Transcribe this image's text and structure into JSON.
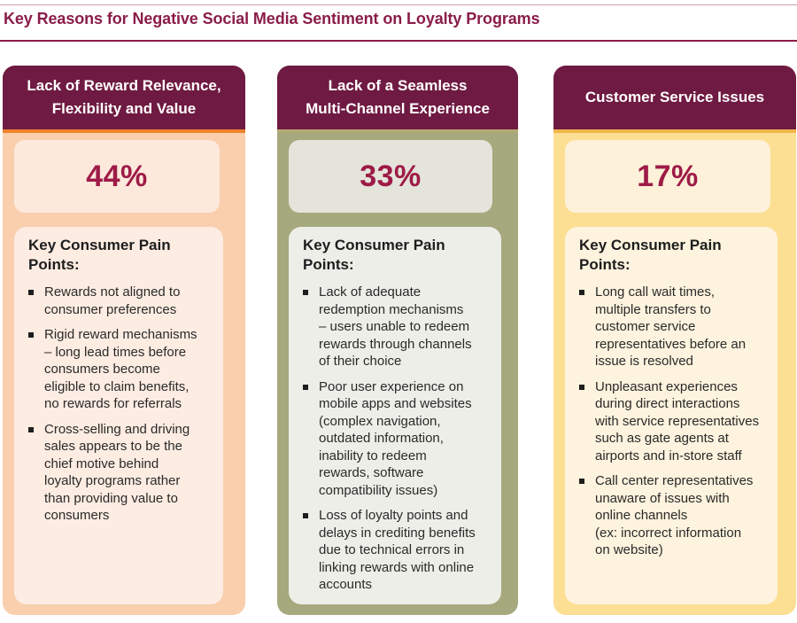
{
  "title": "Key Reasons for Negative Social Media Sentiment on Loyalty Programs",
  "columns": [
    {
      "header": "Lack of Reward Relevance,\nFlexibility and Value",
      "stat": "44%",
      "pain_heading": "Key Consumer Pain Points:",
      "pain_points": [
        "Rewards not aligned to\nconsumer preferences",
        "Rigid reward mechanisms\n– long lead times before\nconsumers become\neligible to claim benefits,\nno rewards for referrals",
        "Cross-selling and driving\nsales appears to be the\nchief motive behind\nloyalty programs rather\nthan providing value to\nconsumers"
      ],
      "colors": {
        "body": "#f9cfae",
        "accent": "#f0822d"
      }
    },
    {
      "header": "Lack of a Seamless\nMulti-Channel Experience",
      "stat": "33%",
      "pain_heading": "Key Consumer Pain Points:",
      "pain_points": [
        "Lack of adequate\nredemption mechanisms\n– users unable to redeem\nrewards through channels\nof their choice",
        "Poor user experience on\nmobile apps and websites\n(complex navigation,\noutdated information,\ninability to redeem\nrewards, software\ncompatibility issues)",
        "Loss of loyalty points and\ndelays in crediting benefits\ndue to technical errors in\nlinking rewards with online\naccounts"
      ],
      "colors": {
        "body": "#a5a97d",
        "accent": "#b3aa74"
      }
    },
    {
      "header": "Customer Service Issues",
      "stat": "17%",
      "pain_heading": "Key Consumer Pain Points:",
      "pain_points": [
        "Long call wait times,\nmultiple transfers to\ncustomer service\nrepresentatives before an\nissue is resolved",
        "Unpleasant experiences\nduring direct interactions\nwith service representatives\nsuch as gate agents at\nairports and in-store staff",
        "Call center representatives\nunaware of issues with\nonline channels\n(ex: incorrect information\non website)"
      ],
      "colors": {
        "body": "#fcdf93",
        "accent": "#f2b54a"
      }
    }
  ],
  "colors": {
    "header": "#6f1a42",
    "title": "#8a1d49",
    "stat": "#9e1b47"
  }
}
